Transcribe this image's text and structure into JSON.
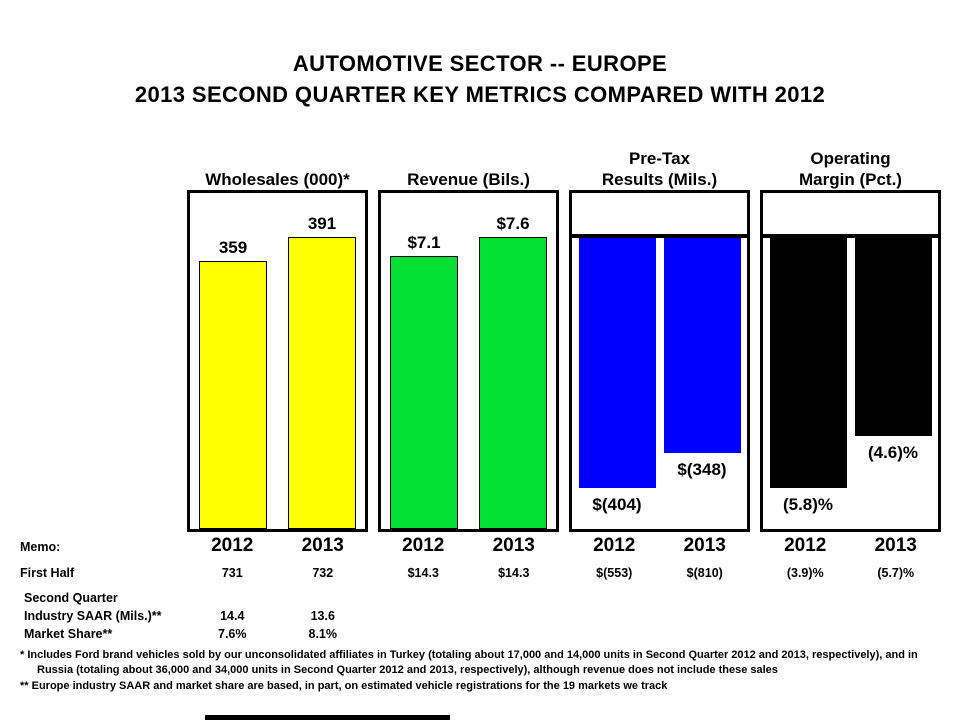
{
  "title": {
    "line1": "AUTOMOTIVE SECTOR -- EUROPE",
    "line2": "2013 SECOND QUARTER KEY METRICS COMPARED WITH 2012"
  },
  "chart_data": [
    {
      "type": "bar",
      "title": "Wholesales (000)*",
      "title_lines": [
        "Wholesales (000)*"
      ],
      "categories": [
        "2012",
        "2013"
      ],
      "values": [
        359,
        391
      ],
      "value_labels": [
        "359",
        "391"
      ],
      "bar_color": "#FFFF00",
      "direction": "up"
    },
    {
      "type": "bar",
      "title": "Revenue (Bils.)",
      "title_lines": [
        "Revenue (Bils.)"
      ],
      "categories": [
        "2012",
        "2013"
      ],
      "values": [
        7.1,
        7.6
      ],
      "value_labels": [
        "$7.1",
        "$7.6"
      ],
      "bar_color": "#00DF32",
      "direction": "up"
    },
    {
      "type": "bar",
      "title": "Pre-Tax Results (Mils.)",
      "title_lines": [
        "Pre-Tax",
        "Results (Mils.)"
      ],
      "categories": [
        "2012",
        "2013"
      ],
      "values": [
        -404,
        -348
      ],
      "value_labels": [
        "$(404)",
        "$(348)"
      ],
      "bar_color": "#0000FF",
      "direction": "down"
    },
    {
      "type": "bar",
      "title": "Operating Margin (Pct.)",
      "title_lines": [
        "Operating",
        "Margin (Pct.)"
      ],
      "categories": [
        "2012",
        "2013"
      ],
      "values": [
        -5.8,
        -4.6
      ],
      "value_labels": [
        "(5.8)%",
        "(4.6)%"
      ],
      "bar_color": "#000000",
      "direction": "down"
    }
  ],
  "memo": {
    "memo_label": "Memo:",
    "first_half_label": "First Half",
    "first_half_values": [
      "731",
      "732",
      "$14.3",
      "$14.3",
      "$(553)",
      "$(810)",
      "(3.9)%",
      "(5.7)%"
    ],
    "second_quarter_label": "Second Quarter",
    "industry_saar_label": "Industry SAAR (Mils.)**",
    "industry_saar_values": [
      "14.4",
      "13.6"
    ],
    "market_share_label": "Market Share**",
    "market_share_values": [
      "7.6%",
      "8.1%"
    ]
  },
  "footnotes": [
    "*  Includes Ford brand vehicles sold by our unconsolidated affiliates in Turkey (totaling about 17,000 and 14,000 units in Second Quarter 2012 and 2013, respectively), and in Russia (totaling about 36,000 and 34,000 units in Second Quarter 2012 and 2013, respectively), although revenue does not include these sales",
    "** Europe industry  SAAR and market share are based, in part, on estimated vehicle registrations for the 19 markets we track"
  ]
}
